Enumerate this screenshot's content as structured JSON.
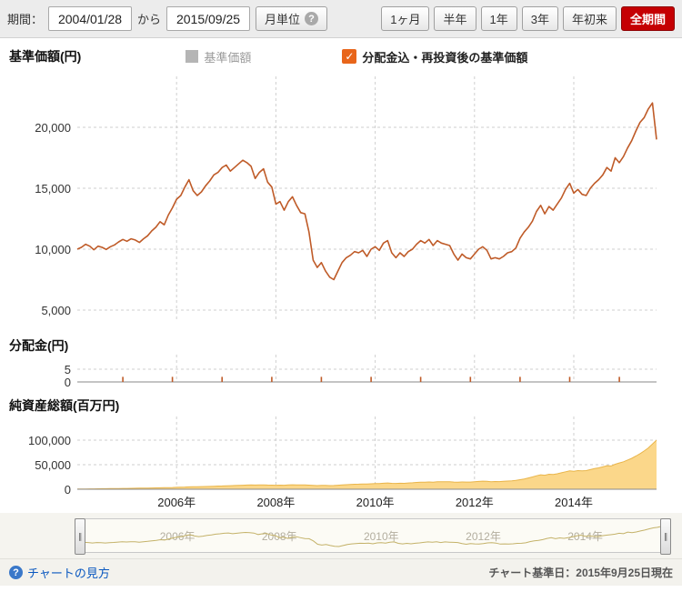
{
  "topbar": {
    "period_label": "期間：",
    "date_from": "2004/01/28",
    "range_connector": "から",
    "date_to": "2015/09/25",
    "monthly_button": "月単位",
    "range_buttons": [
      "1ヶ月",
      "半年",
      "1年",
      "3年",
      "年初来",
      "全期間"
    ],
    "active_range": "全期間"
  },
  "icons": {
    "help": "?",
    "check": "✓",
    "nav_handle": "∥"
  },
  "legend": {
    "items": [
      {
        "label": "基準価額",
        "state": "off",
        "color": "#b5b5b5"
      },
      {
        "label": "分配金込・再投資後の基準価額",
        "state": "on",
        "color": "#e8651a"
      }
    ]
  },
  "sections": {
    "main_title": "基準価額(円)",
    "distribution_title": "分配金(円)",
    "assets_title": "純資産総額(百万円)"
  },
  "footer": {
    "link": "チャートの見方",
    "base_date": "チャート基準日：2015年9月25日現在"
  },
  "colors": {
    "line": "#bf5b28",
    "area_fill": "#fbd78a",
    "area_edge": "#e9b54a",
    "nav_line": "#c4b269",
    "grid": "#cfcfcf",
    "axis": "#8a8a8a",
    "accent_red": "#c50003",
    "link_blue": "#0a58c0"
  },
  "chart_data": [
    {
      "type": "line",
      "title": "基準価額(円)",
      "x_start": "2004/01",
      "x_end": "2015/09",
      "x_interval": "month",
      "ylim": [
        5000,
        24000
      ],
      "yticks": [
        5000,
        10000,
        15000,
        20000
      ],
      "xtick_years": [
        2006,
        2008,
        2010,
        2012,
        2014
      ],
      "xtick_labels": [
        "2006年",
        "2008年",
        "2010年",
        "2012年",
        "2014年"
      ],
      "series": [
        {
          "name": "分配金込・再投資後の基準価額",
          "color": "#bf5b28",
          "values": [
            10000,
            10150,
            10400,
            10250,
            9950,
            10250,
            10150,
            9980,
            10200,
            10350,
            10600,
            10800,
            10650,
            10850,
            10750,
            10550,
            10850,
            11100,
            11500,
            11800,
            12250,
            12000,
            12800,
            13400,
            14100,
            14400,
            15100,
            15700,
            14800,
            14400,
            14700,
            15200,
            15600,
            16100,
            16300,
            16700,
            16900,
            16400,
            16700,
            17000,
            17300,
            17100,
            16800,
            15800,
            16300,
            16600,
            15500,
            15100,
            13700,
            13900,
            13200,
            13900,
            14300,
            13600,
            13000,
            12900,
            11400,
            9100,
            8500,
            8900,
            8200,
            7700,
            7500,
            8200,
            8900,
            9300,
            9500,
            9800,
            9700,
            9900,
            9400,
            10000,
            10200,
            9900,
            10500,
            10700,
            9700,
            9300,
            9700,
            9400,
            9800,
            10000,
            10400,
            10700,
            10500,
            10800,
            10300,
            10700,
            10500,
            10400,
            10300,
            9600,
            9100,
            9600,
            9300,
            9200,
            9600,
            10000,
            10200,
            9900,
            9200,
            9300,
            9200,
            9400,
            9700,
            9800,
            10100,
            10900,
            11400,
            11800,
            12300,
            13100,
            13600,
            12900,
            13500,
            13200,
            13700,
            14200,
            14900,
            15400,
            14600,
            14900,
            14500,
            14400,
            15000,
            15400,
            15700,
            16100,
            16700,
            16400,
            17500,
            17100,
            17600,
            18300,
            18900,
            19700,
            20400,
            20800,
            21500,
            22000,
            19000
          ]
        }
      ]
    },
    {
      "type": "bar",
      "title": "分配金(円)",
      "ylim": [
        0,
        5
      ],
      "yticks": [
        0,
        5
      ],
      "points": [
        [
          11,
          2
        ],
        [
          23,
          2
        ],
        [
          35,
          2
        ],
        [
          47,
          2
        ],
        [
          59,
          2
        ],
        [
          71,
          2
        ],
        [
          83,
          2
        ],
        [
          95,
          2
        ],
        [
          107,
          2
        ],
        [
          119,
          2
        ],
        [
          131,
          2
        ]
      ]
    },
    {
      "type": "area",
      "title": "純資産総額(百万円)",
      "ylim": [
        0,
        100000
      ],
      "yticks": [
        0,
        50000,
        100000
      ],
      "xtick_years": [
        2006,
        2008,
        2010,
        2012,
        2014
      ],
      "xtick_labels": [
        "2006年",
        "2008年",
        "2010年",
        "2012年",
        "2014年"
      ],
      "values": [
        300,
        420,
        540,
        660,
        780,
        900,
        1020,
        1140,
        1260,
        1380,
        1500,
        1620,
        1750,
        1880,
        2010,
        2140,
        2270,
        2400,
        2600,
        2800,
        3000,
        3200,
        3400,
        3600,
        3900,
        4200,
        4500,
        4800,
        5000,
        5200,
        5400,
        5600,
        5800,
        6100,
        6400,
        6700,
        7000,
        7300,
        7600,
        7900,
        8200,
        8500,
        8700,
        8500,
        8700,
        8900,
        8600,
        8400,
        8100,
        8300,
        8200,
        8700,
        9100,
        8900,
        8700,
        8800,
        8400,
        7700,
        7500,
        7800,
        7700,
        7500,
        7600,
        8100,
        8700,
        9200,
        9600,
        10100,
        10300,
        10700,
        10500,
        11100,
        11500,
        11400,
        12200,
        12800,
        12100,
        11800,
        12300,
        12100,
        12700,
        13100,
        13900,
        14500,
        14400,
        14900,
        14500,
        15200,
        15100,
        15200,
        15300,
        14700,
        14300,
        14900,
        14700,
        14600,
        15100,
        15900,
        16400,
        16200,
        15400,
        15700,
        15600,
        16100,
        16700,
        17100,
        17900,
        19400,
        21000,
        23000,
        25000,
        27500,
        29500,
        28500,
        30500,
        30000,
        31500,
        33500,
        35500,
        37500,
        36500,
        38000,
        37500,
        38000,
        40000,
        42000,
        43500,
        45500,
        48000,
        47500,
        51000,
        53500,
        56000,
        59500,
        63000,
        67500,
        72500,
        78000,
        84000,
        92000,
        100000
      ]
    },
    {
      "type": "line",
      "name": "navigator",
      "series_ref": 0,
      "xtick_years": [
        2006,
        2008,
        2010,
        2012,
        2014
      ],
      "xtick_labels": [
        "2006年",
        "2008年",
        "2010年",
        "2012年",
        "2014年"
      ]
    }
  ]
}
